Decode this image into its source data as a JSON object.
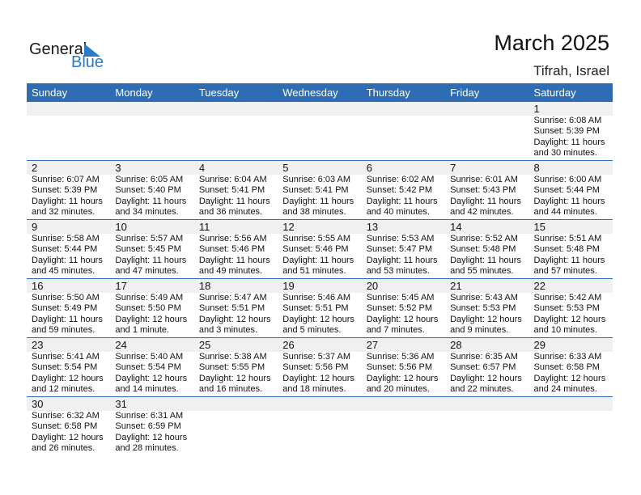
{
  "logo": {
    "line1": "General",
    "line2": "Blue"
  },
  "title": "March 2025",
  "location": "Tifrah, Israel",
  "weekdays": [
    "Sunday",
    "Monday",
    "Tuesday",
    "Wednesday",
    "Thursday",
    "Friday",
    "Saturday"
  ],
  "colors": {
    "header": "#2e6db4",
    "band": "#f0f0f0",
    "logo_blue": "#2a7bc4"
  },
  "weeks": [
    [
      null,
      null,
      null,
      null,
      null,
      null,
      {
        "day": "1",
        "sunrise": "Sunrise: 6:08 AM",
        "sunset": "Sunset: 5:39 PM",
        "daylight1": "Daylight: 11 hours",
        "daylight2": "and 30 minutes."
      }
    ],
    [
      {
        "day": "2",
        "sunrise": "Sunrise: 6:07 AM",
        "sunset": "Sunset: 5:39 PM",
        "daylight1": "Daylight: 11 hours",
        "daylight2": "and 32 minutes."
      },
      {
        "day": "3",
        "sunrise": "Sunrise: 6:05 AM",
        "sunset": "Sunset: 5:40 PM",
        "daylight1": "Daylight: 11 hours",
        "daylight2": "and 34 minutes."
      },
      {
        "day": "4",
        "sunrise": "Sunrise: 6:04 AM",
        "sunset": "Sunset: 5:41 PM",
        "daylight1": "Daylight: 11 hours",
        "daylight2": "and 36 minutes."
      },
      {
        "day": "5",
        "sunrise": "Sunrise: 6:03 AM",
        "sunset": "Sunset: 5:41 PM",
        "daylight1": "Daylight: 11 hours",
        "daylight2": "and 38 minutes."
      },
      {
        "day": "6",
        "sunrise": "Sunrise: 6:02 AM",
        "sunset": "Sunset: 5:42 PM",
        "daylight1": "Daylight: 11 hours",
        "daylight2": "and 40 minutes."
      },
      {
        "day": "7",
        "sunrise": "Sunrise: 6:01 AM",
        "sunset": "Sunset: 5:43 PM",
        "daylight1": "Daylight: 11 hours",
        "daylight2": "and 42 minutes."
      },
      {
        "day": "8",
        "sunrise": "Sunrise: 6:00 AM",
        "sunset": "Sunset: 5:44 PM",
        "daylight1": "Daylight: 11 hours",
        "daylight2": "and 44 minutes."
      }
    ],
    [
      {
        "day": "9",
        "sunrise": "Sunrise: 5:58 AM",
        "sunset": "Sunset: 5:44 PM",
        "daylight1": "Daylight: 11 hours",
        "daylight2": "and 45 minutes."
      },
      {
        "day": "10",
        "sunrise": "Sunrise: 5:57 AM",
        "sunset": "Sunset: 5:45 PM",
        "daylight1": "Daylight: 11 hours",
        "daylight2": "and 47 minutes."
      },
      {
        "day": "11",
        "sunrise": "Sunrise: 5:56 AM",
        "sunset": "Sunset: 5:46 PM",
        "daylight1": "Daylight: 11 hours",
        "daylight2": "and 49 minutes."
      },
      {
        "day": "12",
        "sunrise": "Sunrise: 5:55 AM",
        "sunset": "Sunset: 5:46 PM",
        "daylight1": "Daylight: 11 hours",
        "daylight2": "and 51 minutes."
      },
      {
        "day": "13",
        "sunrise": "Sunrise: 5:53 AM",
        "sunset": "Sunset: 5:47 PM",
        "daylight1": "Daylight: 11 hours",
        "daylight2": "and 53 minutes."
      },
      {
        "day": "14",
        "sunrise": "Sunrise: 5:52 AM",
        "sunset": "Sunset: 5:48 PM",
        "daylight1": "Daylight: 11 hours",
        "daylight2": "and 55 minutes."
      },
      {
        "day": "15",
        "sunrise": "Sunrise: 5:51 AM",
        "sunset": "Sunset: 5:48 PM",
        "daylight1": "Daylight: 11 hours",
        "daylight2": "and 57 minutes."
      }
    ],
    [
      {
        "day": "16",
        "sunrise": "Sunrise: 5:50 AM",
        "sunset": "Sunset: 5:49 PM",
        "daylight1": "Daylight: 11 hours",
        "daylight2": "and 59 minutes."
      },
      {
        "day": "17",
        "sunrise": "Sunrise: 5:49 AM",
        "sunset": "Sunset: 5:50 PM",
        "daylight1": "Daylight: 12 hours",
        "daylight2": "and 1 minute."
      },
      {
        "day": "18",
        "sunrise": "Sunrise: 5:47 AM",
        "sunset": "Sunset: 5:51 PM",
        "daylight1": "Daylight: 12 hours",
        "daylight2": "and 3 minutes."
      },
      {
        "day": "19",
        "sunrise": "Sunrise: 5:46 AM",
        "sunset": "Sunset: 5:51 PM",
        "daylight1": "Daylight: 12 hours",
        "daylight2": "and 5 minutes."
      },
      {
        "day": "20",
        "sunrise": "Sunrise: 5:45 AM",
        "sunset": "Sunset: 5:52 PM",
        "daylight1": "Daylight: 12 hours",
        "daylight2": "and 7 minutes."
      },
      {
        "day": "21",
        "sunrise": "Sunrise: 5:43 AM",
        "sunset": "Sunset: 5:53 PM",
        "daylight1": "Daylight: 12 hours",
        "daylight2": "and 9 minutes."
      },
      {
        "day": "22",
        "sunrise": "Sunrise: 5:42 AM",
        "sunset": "Sunset: 5:53 PM",
        "daylight1": "Daylight: 12 hours",
        "daylight2": "and 10 minutes."
      }
    ],
    [
      {
        "day": "23",
        "sunrise": "Sunrise: 5:41 AM",
        "sunset": "Sunset: 5:54 PM",
        "daylight1": "Daylight: 12 hours",
        "daylight2": "and 12 minutes."
      },
      {
        "day": "24",
        "sunrise": "Sunrise: 5:40 AM",
        "sunset": "Sunset: 5:54 PM",
        "daylight1": "Daylight: 12 hours",
        "daylight2": "and 14 minutes."
      },
      {
        "day": "25",
        "sunrise": "Sunrise: 5:38 AM",
        "sunset": "Sunset: 5:55 PM",
        "daylight1": "Daylight: 12 hours",
        "daylight2": "and 16 minutes."
      },
      {
        "day": "26",
        "sunrise": "Sunrise: 5:37 AM",
        "sunset": "Sunset: 5:56 PM",
        "daylight1": "Daylight: 12 hours",
        "daylight2": "and 18 minutes."
      },
      {
        "day": "27",
        "sunrise": "Sunrise: 5:36 AM",
        "sunset": "Sunset: 5:56 PM",
        "daylight1": "Daylight: 12 hours",
        "daylight2": "and 20 minutes."
      },
      {
        "day": "28",
        "sunrise": "Sunrise: 6:35 AM",
        "sunset": "Sunset: 6:57 PM",
        "daylight1": "Daylight: 12 hours",
        "daylight2": "and 22 minutes."
      },
      {
        "day": "29",
        "sunrise": "Sunrise: 6:33 AM",
        "sunset": "Sunset: 6:58 PM",
        "daylight1": "Daylight: 12 hours",
        "daylight2": "and 24 minutes."
      }
    ],
    [
      {
        "day": "30",
        "sunrise": "Sunrise: 6:32 AM",
        "sunset": "Sunset: 6:58 PM",
        "daylight1": "Daylight: 12 hours",
        "daylight2": "and 26 minutes."
      },
      {
        "day": "31",
        "sunrise": "Sunrise: 6:31 AM",
        "sunset": "Sunset: 6:59 PM",
        "daylight1": "Daylight: 12 hours",
        "daylight2": "and 28 minutes."
      },
      null,
      null,
      null,
      null,
      null
    ]
  ]
}
